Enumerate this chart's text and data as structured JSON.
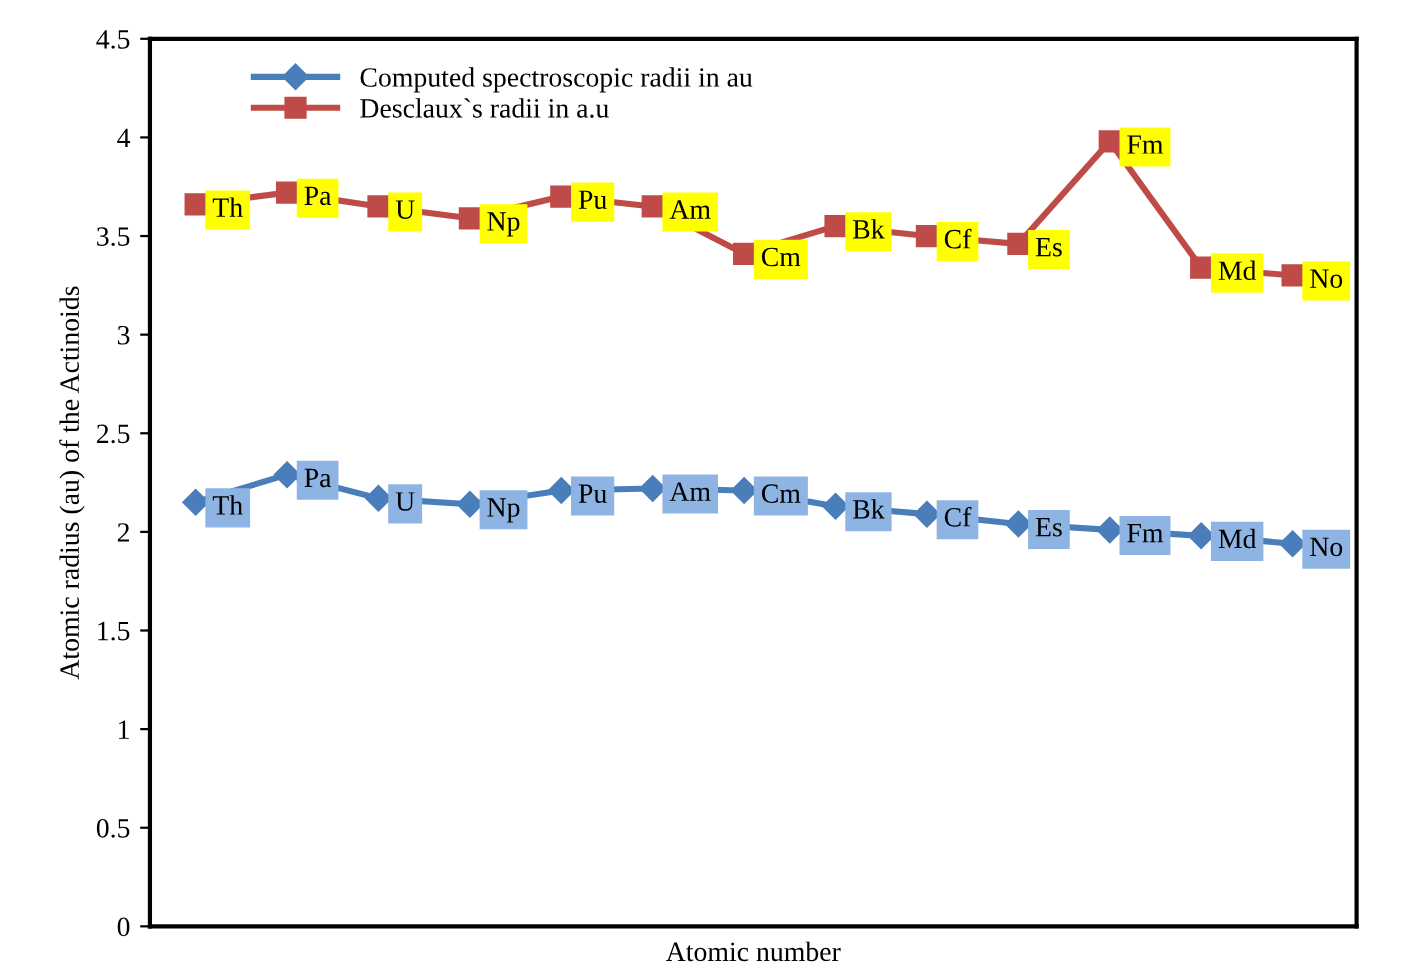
{
  "chart_data": {
    "type": "line",
    "xlabel": "Atomic number",
    "ylabel": "Atomic radius (au) of the Actinoids",
    "categories": [
      null,
      null,
      null,
      null,
      null,
      null,
      null,
      null,
      null,
      null,
      null,
      null,
      null
    ],
    "series": [
      {
        "name": "Computed spectroscopic radii in au",
        "color": "#4a7ebb",
        "marker": "diamond",
        "values": [
          2.15,
          2.29,
          2.17,
          2.14,
          2.21,
          2.22,
          2.21,
          2.13,
          2.09,
          2.04,
          2.01,
          1.98,
          1.94
        ],
        "value_labels": [
          "Th",
          "Pa",
          "U",
          "Np",
          "Pu",
          "Am",
          "Cm",
          "Bk",
          "Cf",
          "Es",
          "Fm",
          "Md",
          "No"
        ]
      },
      {
        "name": "Desclaux`s radii in a.u",
        "color": "#be4b48",
        "marker": "square",
        "values": [
          3.66,
          3.72,
          3.65,
          3.59,
          3.7,
          3.65,
          3.41,
          3.55,
          3.5,
          3.46,
          3.98,
          3.34,
          3.3
        ],
        "value_labels": [
          "Th",
          "Pa",
          "U",
          "Np",
          "Pu",
          "Am",
          "Cm",
          "Bk",
          "Cf",
          "Es",
          "Fm",
          "Md",
          "No"
        ]
      }
    ],
    "ylim": [
      0,
      4.5
    ],
    "yticks": [
      0,
      0.5,
      1,
      1.5,
      2,
      2.5,
      3,
      3.5,
      4,
      4.5
    ],
    "grid": false,
    "legend": "top left",
    "line_style": "solid"
  }
}
